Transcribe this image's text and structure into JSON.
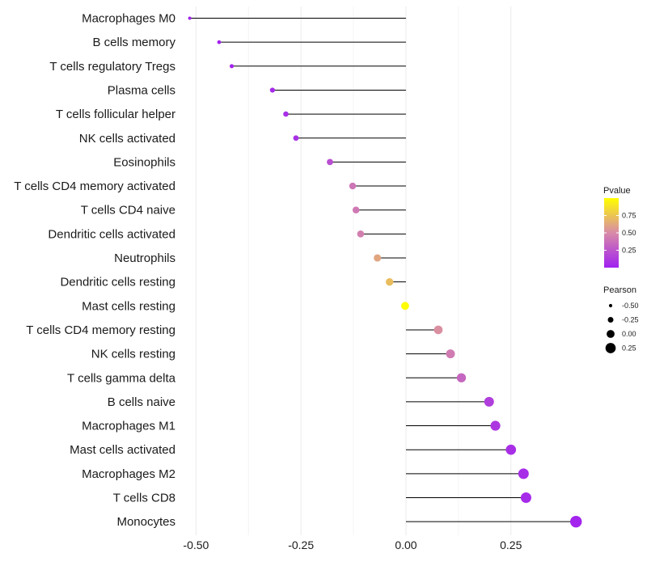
{
  "chart_data": {
    "type": "lollipop",
    "title": "",
    "xlabel": "",
    "ylabel": "",
    "xlim": [
      -0.52,
      0.42
    ],
    "x_ticks": [
      -0.5,
      -0.25,
      0.0,
      0.25
    ],
    "x_tick_labels": [
      "-0.50",
      "-0.25",
      "0.00",
      "0.25"
    ],
    "grid": "vertical",
    "categories": [
      "Macrophages M0",
      "B cells memory",
      "T cells regulatory  Tregs",
      "Plasma cells",
      "T cells follicular helper",
      "NK cells activated",
      "Eosinophils",
      "T cells CD4 memory activated",
      "T cells CD4 naive",
      "Dendritic cells activated",
      "Neutrophils",
      "Dendritic cells resting",
      "Mast cells resting",
      "T cells CD4 memory resting",
      "NK cells resting",
      "T cells gamma delta",
      "B cells naive",
      "Macrophages M1",
      "Mast cells activated",
      "Macrophages M2",
      "T cells CD8",
      "Monocytes"
    ],
    "pearson": [
      -0.515,
      -0.445,
      -0.415,
      -0.318,
      -0.286,
      -0.262,
      -0.181,
      -0.127,
      -0.119,
      -0.108,
      -0.068,
      -0.039,
      -0.002,
      0.077,
      0.106,
      0.132,
      0.198,
      0.213,
      0.25,
      0.28,
      0.286,
      0.405
    ],
    "pvalue": [
      0.01,
      0.02,
      0.03,
      0.05,
      0.07,
      0.08,
      0.22,
      0.4,
      0.42,
      0.45,
      0.62,
      0.72,
      0.99,
      0.52,
      0.43,
      0.33,
      0.14,
      0.11,
      0.07,
      0.06,
      0.05,
      0.02
    ],
    "legend_color": {
      "title": "Pvalue",
      "ticks": [
        0.25,
        0.5,
        0.75
      ],
      "tick_labels": [
        "0.25",
        "0.50",
        "0.75"
      ],
      "range": [
        0.0,
        1.0
      ],
      "low_color": "#a020f0",
      "mid_color": "#d88aa8",
      "high_color": "#ffff00"
    },
    "legend_size": {
      "title": "Pearson",
      "values": [
        -0.5,
        -0.25,
        0.0,
        0.25
      ],
      "labels": [
        "-0.50",
        "-0.25",
        "0.00",
        "0.25"
      ]
    },
    "legend_position": "right"
  }
}
